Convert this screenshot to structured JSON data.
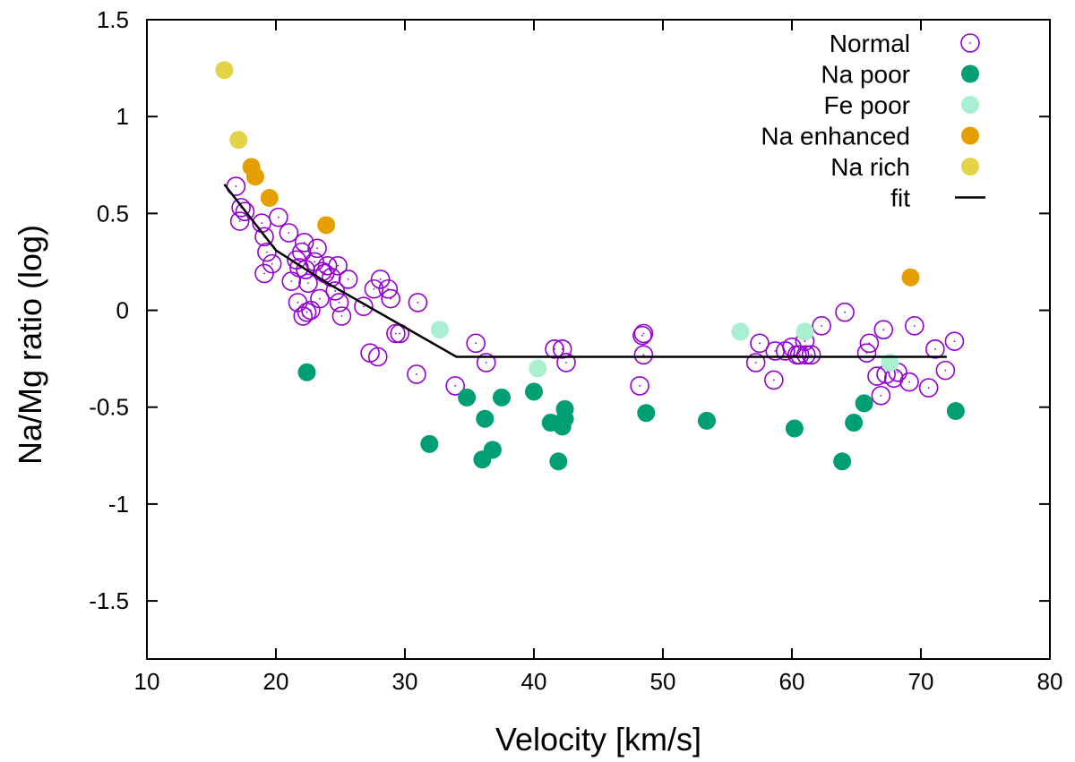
{
  "chart_data": {
    "type": "scatter",
    "xlabel": "Velocity [km/s]",
    "ylabel": "Na/Mg ratio (log)",
    "xlim": [
      10,
      80
    ],
    "ylim": [
      -1.8,
      1.5
    ],
    "x_ticks": [
      10,
      20,
      30,
      40,
      50,
      60,
      70,
      80
    ],
    "x_tick_labels": [
      "10",
      "20",
      "30",
      "40",
      "50",
      "60",
      "70",
      "80"
    ],
    "y_ticks": [
      1.5,
      1,
      0.5,
      0,
      -0.5,
      -1,
      -1.5
    ],
    "y_tick_labels": [
      "1.5",
      "1",
      "0.5",
      "0",
      "-0.5",
      "-1",
      "-1.5"
    ],
    "legend_position": "top-right",
    "series": [
      {
        "name": "Normal",
        "marker": "open-circle",
        "color": "#9400d3",
        "points": [
          [
            16.9,
            0.64
          ],
          [
            17.3,
            0.53
          ],
          [
            17.2,
            0.46
          ],
          [
            17.6,
            0.51
          ],
          [
            18.9,
            0.45
          ],
          [
            19.1,
            0.38
          ],
          [
            19.3,
            0.3
          ],
          [
            19.1,
            0.19
          ],
          [
            19.7,
            0.24
          ],
          [
            20.2,
            0.48
          ],
          [
            21.0,
            0.4
          ],
          [
            21.2,
            0.15
          ],
          [
            21.6,
            0.26
          ],
          [
            21.8,
            0.22
          ],
          [
            21.7,
            0.04
          ],
          [
            22.0,
            0.3
          ],
          [
            22.2,
            0.35
          ],
          [
            22.3,
            0.21
          ],
          [
            22.5,
            0.14
          ],
          [
            22.1,
            -0.03
          ],
          [
            22.4,
            -0.01
          ],
          [
            22.7,
            0.0
          ],
          [
            23.0,
            0.25
          ],
          [
            23.2,
            0.32
          ],
          [
            23.4,
            0.06
          ],
          [
            23.6,
            0.2
          ],
          [
            23.8,
            0.19
          ],
          [
            24.0,
            0.23
          ],
          [
            24.3,
            0.17
          ],
          [
            24.6,
            0.1
          ],
          [
            24.8,
            0.23
          ],
          [
            24.9,
            0.04
          ],
          [
            25.1,
            -0.03
          ],
          [
            25.6,
            0.16
          ],
          [
            26.8,
            0.02
          ],
          [
            27.3,
            -0.22
          ],
          [
            27.6,
            0.11
          ],
          [
            27.9,
            -0.24
          ],
          [
            28.1,
            0.16
          ],
          [
            28.7,
            0.11
          ],
          [
            28.9,
            0.06
          ],
          [
            29.3,
            -0.12
          ],
          [
            29.6,
            -0.12
          ],
          [
            30.9,
            -0.33
          ],
          [
            31.0,
            0.04
          ],
          [
            33.9,
            -0.39
          ],
          [
            35.5,
            -0.17
          ],
          [
            36.3,
            -0.27
          ],
          [
            41.6,
            -0.2
          ],
          [
            42.2,
            -0.2
          ],
          [
            42.5,
            -0.27
          ],
          [
            48.2,
            -0.39
          ],
          [
            48.4,
            -0.13
          ],
          [
            48.5,
            -0.23
          ],
          [
            48.5,
            -0.12
          ],
          [
            57.2,
            -0.27
          ],
          [
            57.5,
            -0.17
          ],
          [
            58.6,
            -0.36
          ],
          [
            58.7,
            -0.21
          ],
          [
            59.5,
            -0.21
          ],
          [
            60.0,
            -0.19
          ],
          [
            60.4,
            -0.23
          ],
          [
            60.6,
            -0.23
          ],
          [
            61.0,
            -0.16
          ],
          [
            61.1,
            -0.23
          ],
          [
            61.5,
            -0.23
          ],
          [
            62.3,
            -0.08
          ],
          [
            64.1,
            -0.01
          ],
          [
            65.8,
            -0.22
          ],
          [
            66.0,
            -0.17
          ],
          [
            66.6,
            -0.34
          ],
          [
            66.9,
            -0.44
          ],
          [
            67.1,
            -0.1
          ],
          [
            67.3,
            -0.33
          ],
          [
            67.9,
            -0.35
          ],
          [
            68.2,
            -0.32
          ],
          [
            69.1,
            -0.37
          ],
          [
            69.5,
            -0.08
          ],
          [
            70.6,
            -0.4
          ],
          [
            71.1,
            -0.2
          ],
          [
            71.9,
            -0.31
          ],
          [
            72.6,
            -0.16
          ]
        ]
      },
      {
        "name": "Na poor",
        "marker": "filled-circle",
        "color": "#009e73",
        "points": [
          [
            22.4,
            -0.32
          ],
          [
            31.9,
            -0.69
          ],
          [
            34.8,
            -0.45
          ],
          [
            36.0,
            -0.77
          ],
          [
            36.2,
            -0.56
          ],
          [
            36.8,
            -0.72
          ],
          [
            37.5,
            -0.45
          ],
          [
            40.0,
            -0.42
          ],
          [
            41.3,
            -0.58
          ],
          [
            41.9,
            -0.78
          ],
          [
            42.2,
            -0.6
          ],
          [
            42.4,
            -0.51
          ],
          [
            42.4,
            -0.56
          ],
          [
            48.7,
            -0.53
          ],
          [
            53.4,
            -0.57
          ],
          [
            60.2,
            -0.61
          ],
          [
            63.9,
            -0.78
          ],
          [
            64.8,
            -0.58
          ],
          [
            65.6,
            -0.48
          ],
          [
            72.7,
            -0.52
          ]
        ]
      },
      {
        "name": "Fe poor",
        "marker": "filled-circle",
        "color": "#a8f0cf",
        "points": [
          [
            32.7,
            -0.1
          ],
          [
            40.3,
            -0.3
          ],
          [
            56.0,
            -0.11
          ],
          [
            61.0,
            -0.11
          ],
          [
            67.6,
            -0.27
          ]
        ]
      },
      {
        "name": "Na enhanced",
        "marker": "filled-circle",
        "color": "#e69f00",
        "points": [
          [
            18.1,
            0.74
          ],
          [
            18.4,
            0.69
          ],
          [
            19.5,
            0.58
          ],
          [
            23.9,
            0.44
          ],
          [
            69.2,
            0.17
          ]
        ]
      },
      {
        "name": "Na rich",
        "marker": "filled-circle",
        "color": "#e4d346",
        "points": [
          [
            16.0,
            1.24
          ],
          [
            17.1,
            0.88
          ]
        ]
      },
      {
        "name": "fit",
        "marker": "line",
        "color": "#000000",
        "points": [
          [
            16.0,
            0.65
          ],
          [
            20.0,
            0.31
          ],
          [
            24.0,
            0.14
          ],
          [
            34.0,
            -0.24
          ],
          [
            72.0,
            -0.24
          ]
        ]
      }
    ]
  }
}
